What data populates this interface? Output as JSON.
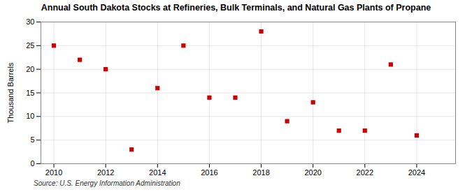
{
  "chart_data": {
    "type": "scatter",
    "title": "Annual South Dakota Stocks at Refineries, Bulk Terminals, and Natural Gas Plants of Propane",
    "ylabel": "Thousand Barrels",
    "annotation": "Source: U.S. Energy Information Administration",
    "x": [
      2010,
      2011,
      2012,
      2013,
      2014,
      2015,
      2016,
      2017,
      2018,
      2019,
      2020,
      2021,
      2022,
      2023,
      2024
    ],
    "values": [
      25,
      22,
      20,
      3,
      16,
      25,
      14,
      14,
      28,
      9,
      13,
      7,
      7,
      21,
      6
    ],
    "color": "#cc0000",
    "marker": "square",
    "xlim": [
      2009.5,
      2025.5
    ],
    "xticks": [
      2010,
      2012,
      2014,
      2016,
      2018,
      2020,
      2022,
      2024
    ],
    "ylim": [
      0,
      30
    ],
    "yticks": [
      0,
      5,
      10,
      15,
      20,
      25,
      30
    ],
    "grid": true
  }
}
